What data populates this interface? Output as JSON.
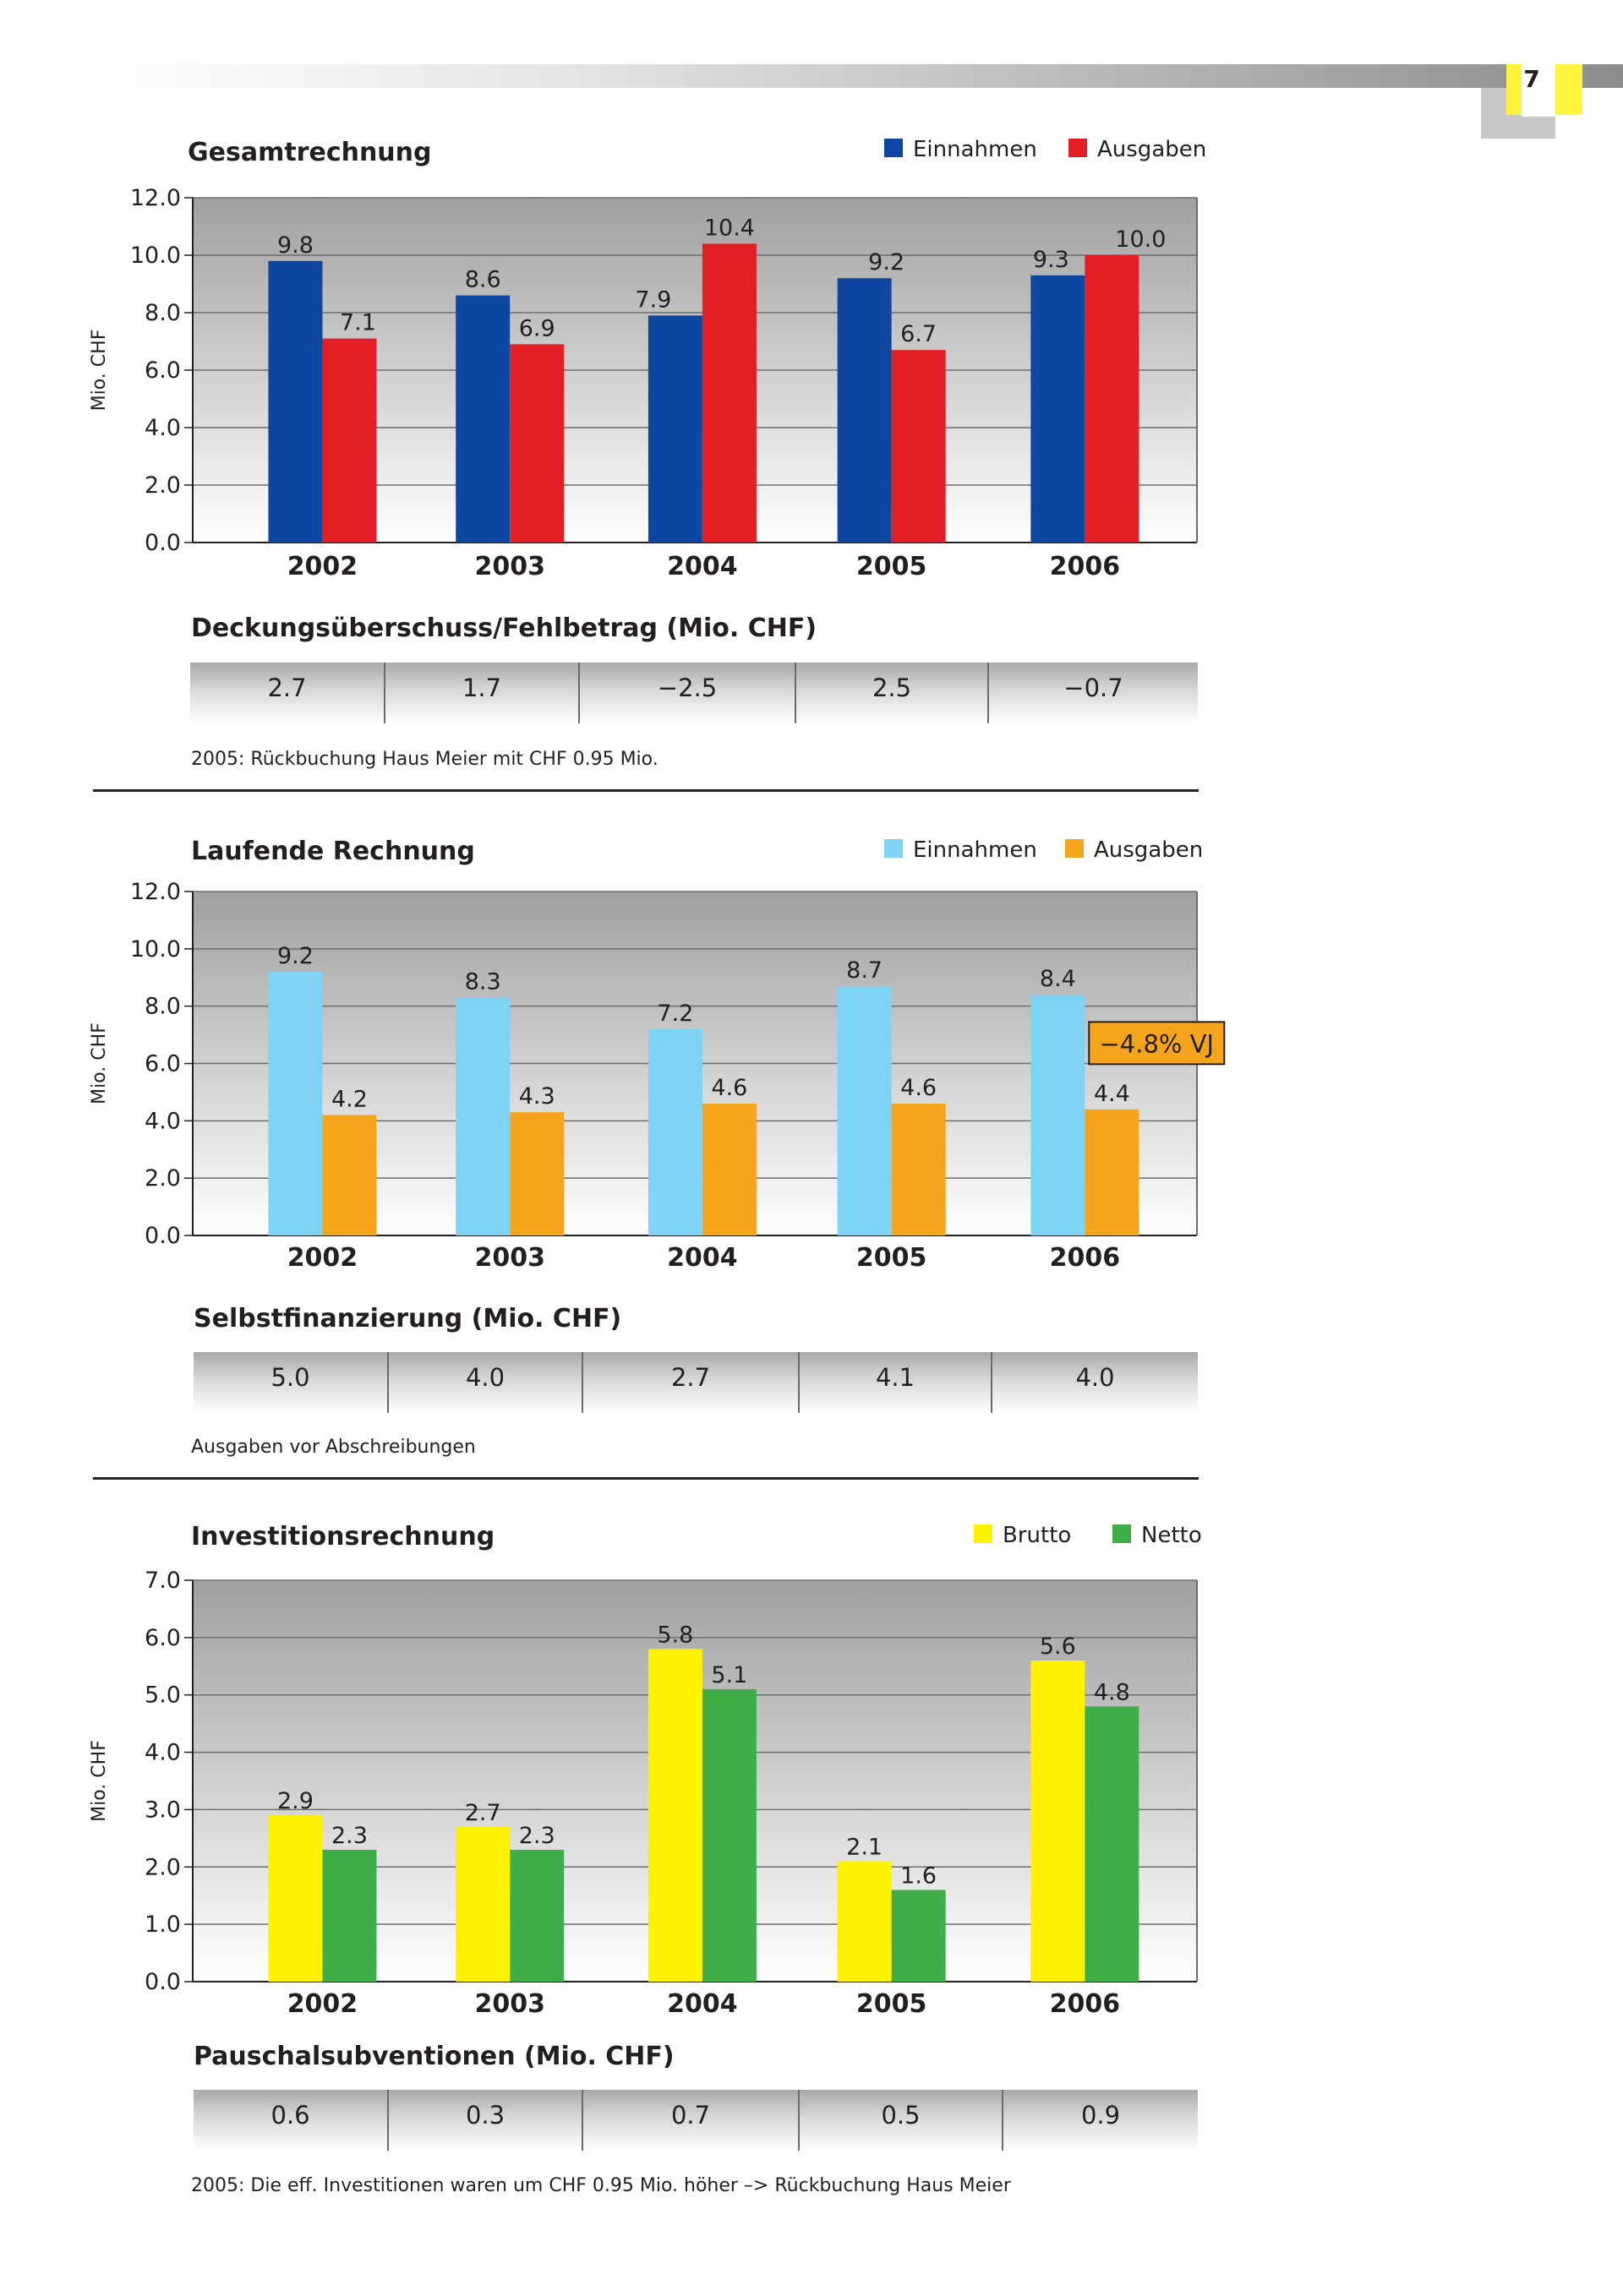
{
  "page": {
    "number": "7"
  },
  "chart_data": [
    {
      "type": "bar",
      "title": "Gesamtrechnung",
      "ylabel": "Mio. CHF",
      "xlabel": "",
      "categories": [
        "2002",
        "2003",
        "2004",
        "2005",
        "2006"
      ],
      "ylim": [
        0,
        12
      ],
      "yticks": [
        "0.0",
        "2.0",
        "4.0",
        "6.0",
        "8.0",
        "10.0",
        "12.0"
      ],
      "grid": true,
      "legend": "top-right",
      "series": [
        {
          "name": "Einnahmen",
          "color": "#0d47a1",
          "values": [
            9.8,
            8.6,
            7.9,
            9.2,
            9.3
          ],
          "labels": [
            "9.8",
            "8.6",
            "7.9",
            "9.2",
            "9.3"
          ]
        },
        {
          "name": "Ausgaben",
          "color": "#e31e24",
          "values": [
            7.1,
            6.9,
            10.4,
            6.7,
            10.0
          ],
          "labels": [
            "7.1",
            "6.9",
            "10.4",
            "6.7",
            "10.0"
          ]
        }
      ]
    },
    {
      "type": "bar",
      "title": "Laufende Rechnung",
      "ylabel": "Mio. CHF",
      "xlabel": "",
      "categories": [
        "2002",
        "2003",
        "2004",
        "2005",
        "2006"
      ],
      "ylim": [
        0,
        12
      ],
      "yticks": [
        "0.0",
        "2.0",
        "4.0",
        "6.0",
        "8.0",
        "10.0",
        "12.0"
      ],
      "grid": true,
      "legend": "top-right",
      "annotation": "−4.8% VJ",
      "series": [
        {
          "name": "Einnahmen",
          "color": "#7fd3f5",
          "values": [
            9.2,
            8.3,
            7.2,
            8.7,
            8.4
          ],
          "labels": [
            "9.2",
            "8.3",
            "7.2",
            "8.7",
            "8.4"
          ]
        },
        {
          "name": "Ausgaben",
          "color": "#f7a41d",
          "values": [
            4.2,
            4.3,
            4.6,
            4.6,
            4.4
          ],
          "labels": [
            "4.2",
            "4.3",
            "4.6",
            "4.6",
            "4.4"
          ]
        }
      ]
    },
    {
      "type": "bar",
      "title": "Investitionsrechnung",
      "ylabel": "Mio. CHF",
      "xlabel": "",
      "categories": [
        "2002",
        "2003",
        "2004",
        "2005",
        "2006"
      ],
      "ylim": [
        0,
        7
      ],
      "yticks": [
        "0.0",
        "1.0",
        "2.0",
        "3.0",
        "4.0",
        "5.0",
        "6.0",
        "7.0"
      ],
      "grid": true,
      "legend": "top-right",
      "series": [
        {
          "name": "Brutto",
          "color": "#fff200",
          "values": [
            2.9,
            2.7,
            5.8,
            2.1,
            5.6
          ],
          "labels": [
            "2.9",
            "2.7",
            "5.8",
            "2.1",
            "5.6"
          ]
        },
        {
          "name": "Netto",
          "color": "#3fae49",
          "values": [
            2.3,
            2.3,
            5.1,
            1.6,
            4.8
          ],
          "labels": [
            "2.3",
            "2.3",
            "5.1",
            "1.6",
            "4.8"
          ]
        }
      ]
    }
  ],
  "tables": [
    {
      "title": "Deckungsüberschuss/Fehlbetrag (Mio. CHF)",
      "values": [
        "2.7",
        "1.7",
        "−2.5",
        "2.5",
        "−0.7"
      ],
      "footnote": "2005: Rückbuchung Haus Meier mit CHF 0.95 Mio."
    },
    {
      "title": "Selbstfinanzierung (Mio. CHF)",
      "values": [
        "5.0",
        "4.0",
        "2.7",
        "4.1",
        "4.0"
      ],
      "footnote": "Ausgaben vor Abschreibungen"
    },
    {
      "title": "Pauschalsubventionen (Mio. CHF)",
      "values": [
        "0.6",
        "0.3",
        "0.7",
        "0.5",
        "0.9"
      ],
      "footnote": "2005: Die eff. Investitionen waren um CHF 0.95 Mio. höher –> Rückbuchung Haus Meier"
    }
  ]
}
